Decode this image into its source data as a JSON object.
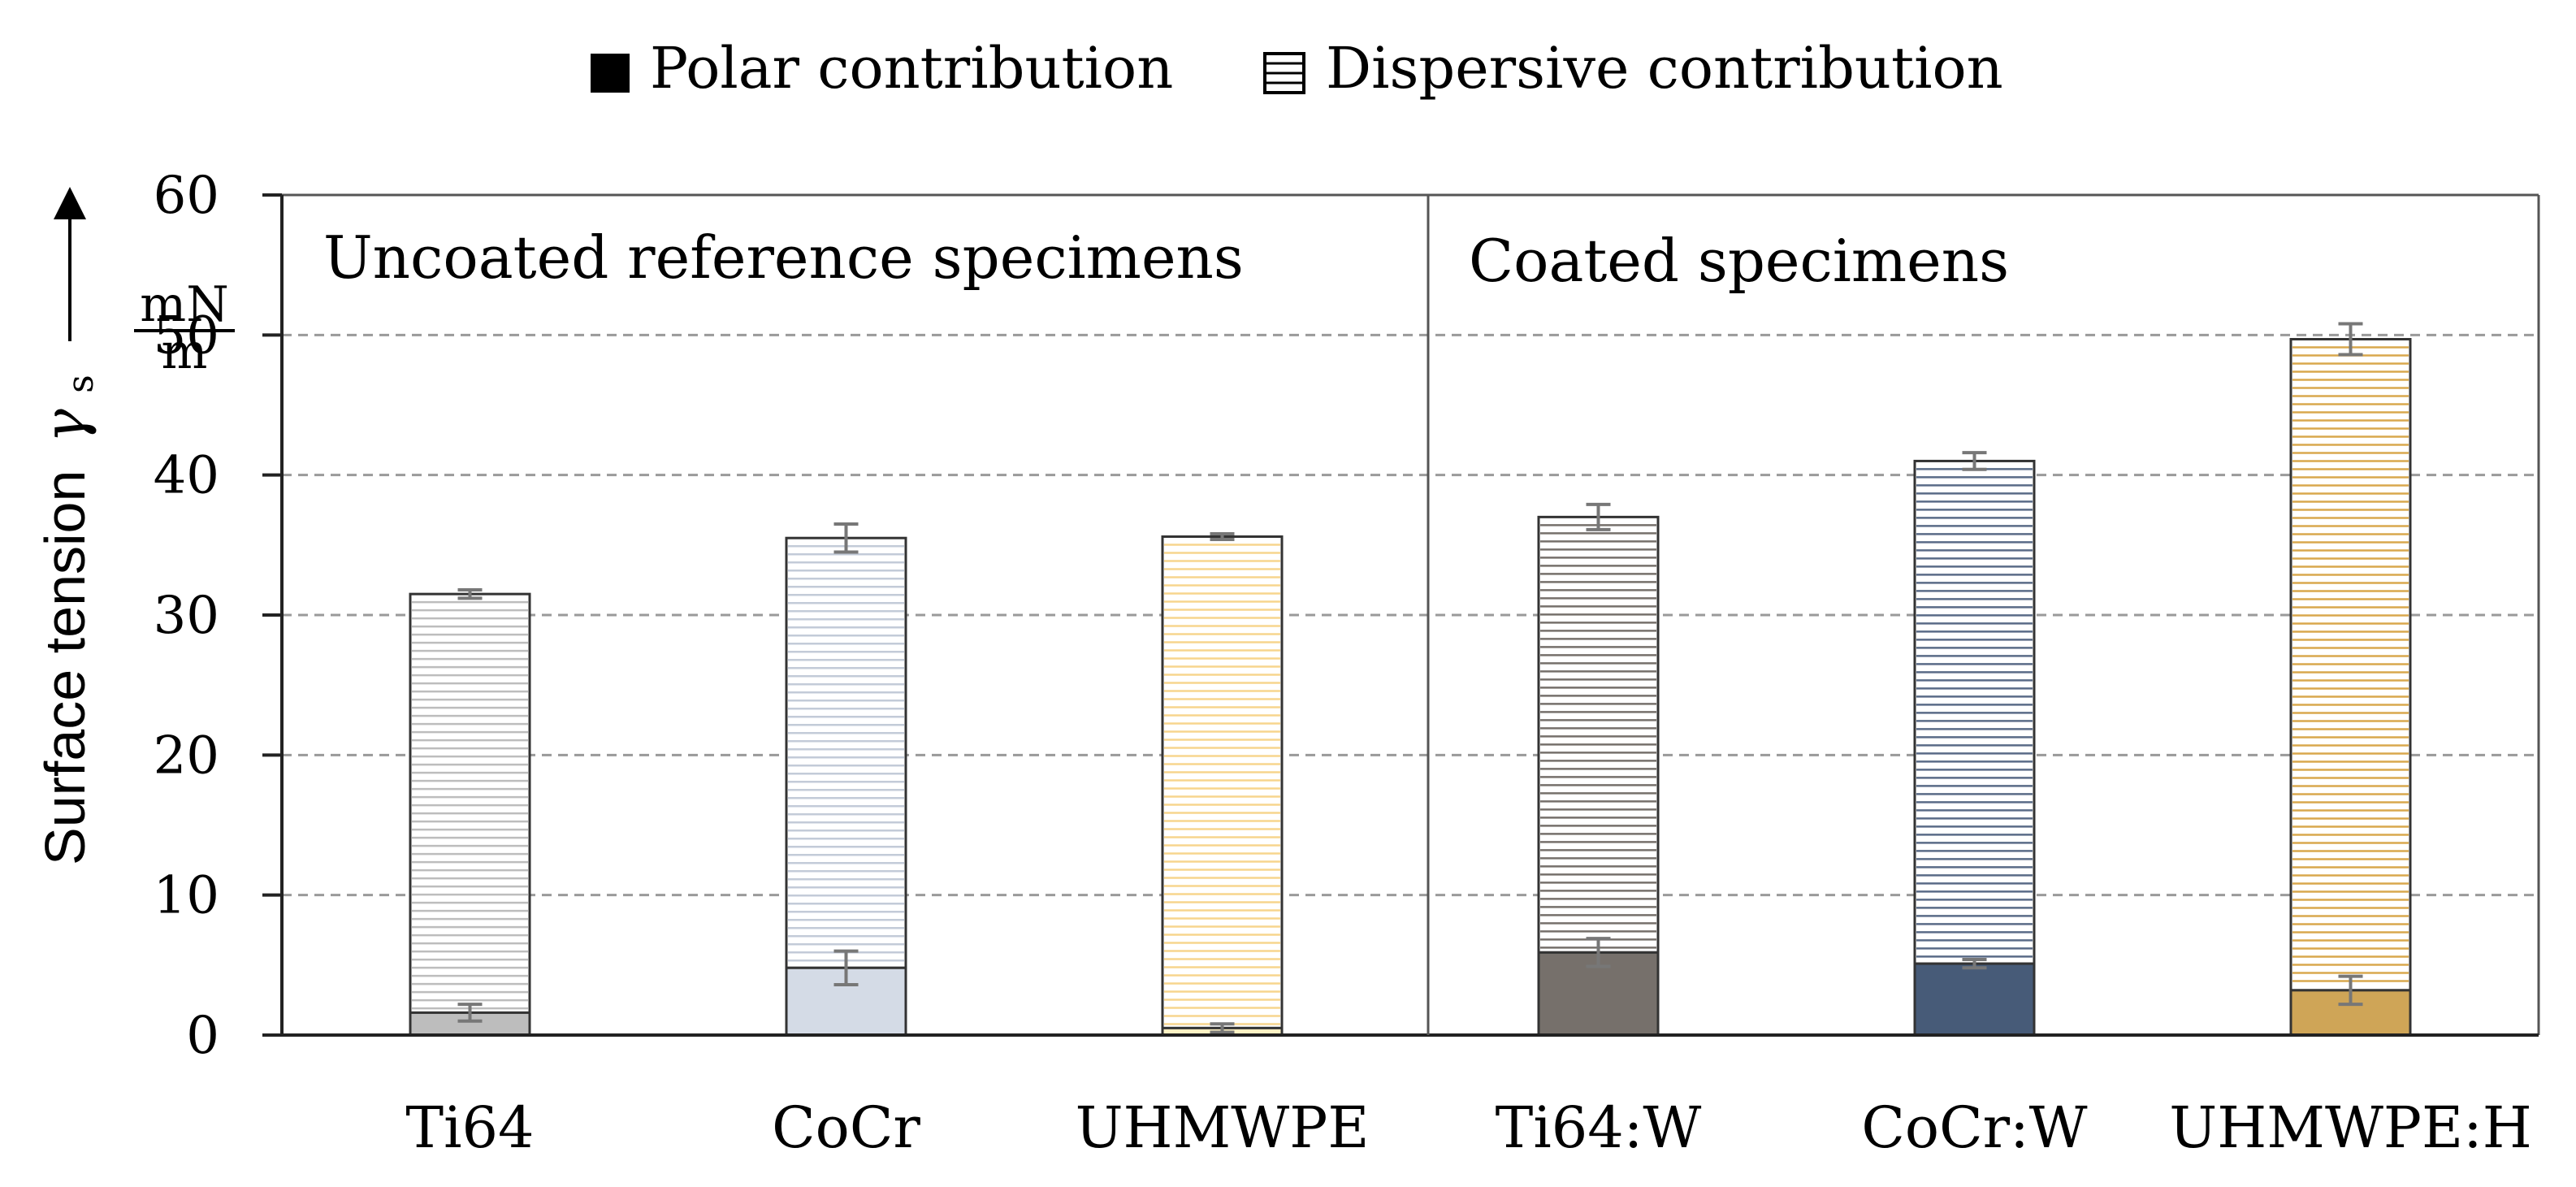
{
  "chart_data": {
    "type": "bar",
    "stacked": true,
    "categories": [
      "Ti64",
      "CoCr",
      "UHMWPE",
      "Ti64:W",
      "CoCr:W",
      "UHMWPE:H"
    ],
    "series": [
      {
        "name": "Polar contribution",
        "values": [
          1.6,
          4.8,
          0.5,
          5.9,
          5.1,
          3.2
        ],
        "errors": [
          0.6,
          1.2,
          0.3,
          1.0,
          0.3,
          1.0
        ]
      },
      {
        "name": "Dispersive contribution",
        "values": [
          29.9,
          30.7,
          35.1,
          31.1,
          35.9,
          46.5
        ],
        "total_errors": [
          0.3,
          1.0,
          0.2,
          0.9,
          0.6,
          1.1
        ]
      }
    ],
    "bar_colors": {
      "polar": [
        "#bdbdbd",
        "#d4dbe6",
        "#fff2c4",
        "#76706b",
        "#475b78",
        "#cfa557"
      ],
      "dispersive_lines": [
        "#bdbdbd",
        "#c3cbd8",
        "#f7d58e",
        "#76706b",
        "#5a6b87",
        "#d9a84e"
      ]
    },
    "ylabel": "Surface tension",
    "ylabel_symbol": "γ",
    "ylabel_subscript": "s",
    "unit_numerator": "mN",
    "unit_denominator": "m",
    "ylim": [
      0,
      60
    ],
    "yticks": [
      "0",
      "10",
      "20",
      "30",
      "40",
      "50",
      "60"
    ],
    "grid": true,
    "legend_position": "top-center",
    "legend": {
      "polar_label": "Polar contribution",
      "dispersive_label": "Dispersive contribution"
    },
    "annotations": {
      "left_section": "Uncoated reference specimens",
      "right_section": "Coated specimens"
    }
  }
}
